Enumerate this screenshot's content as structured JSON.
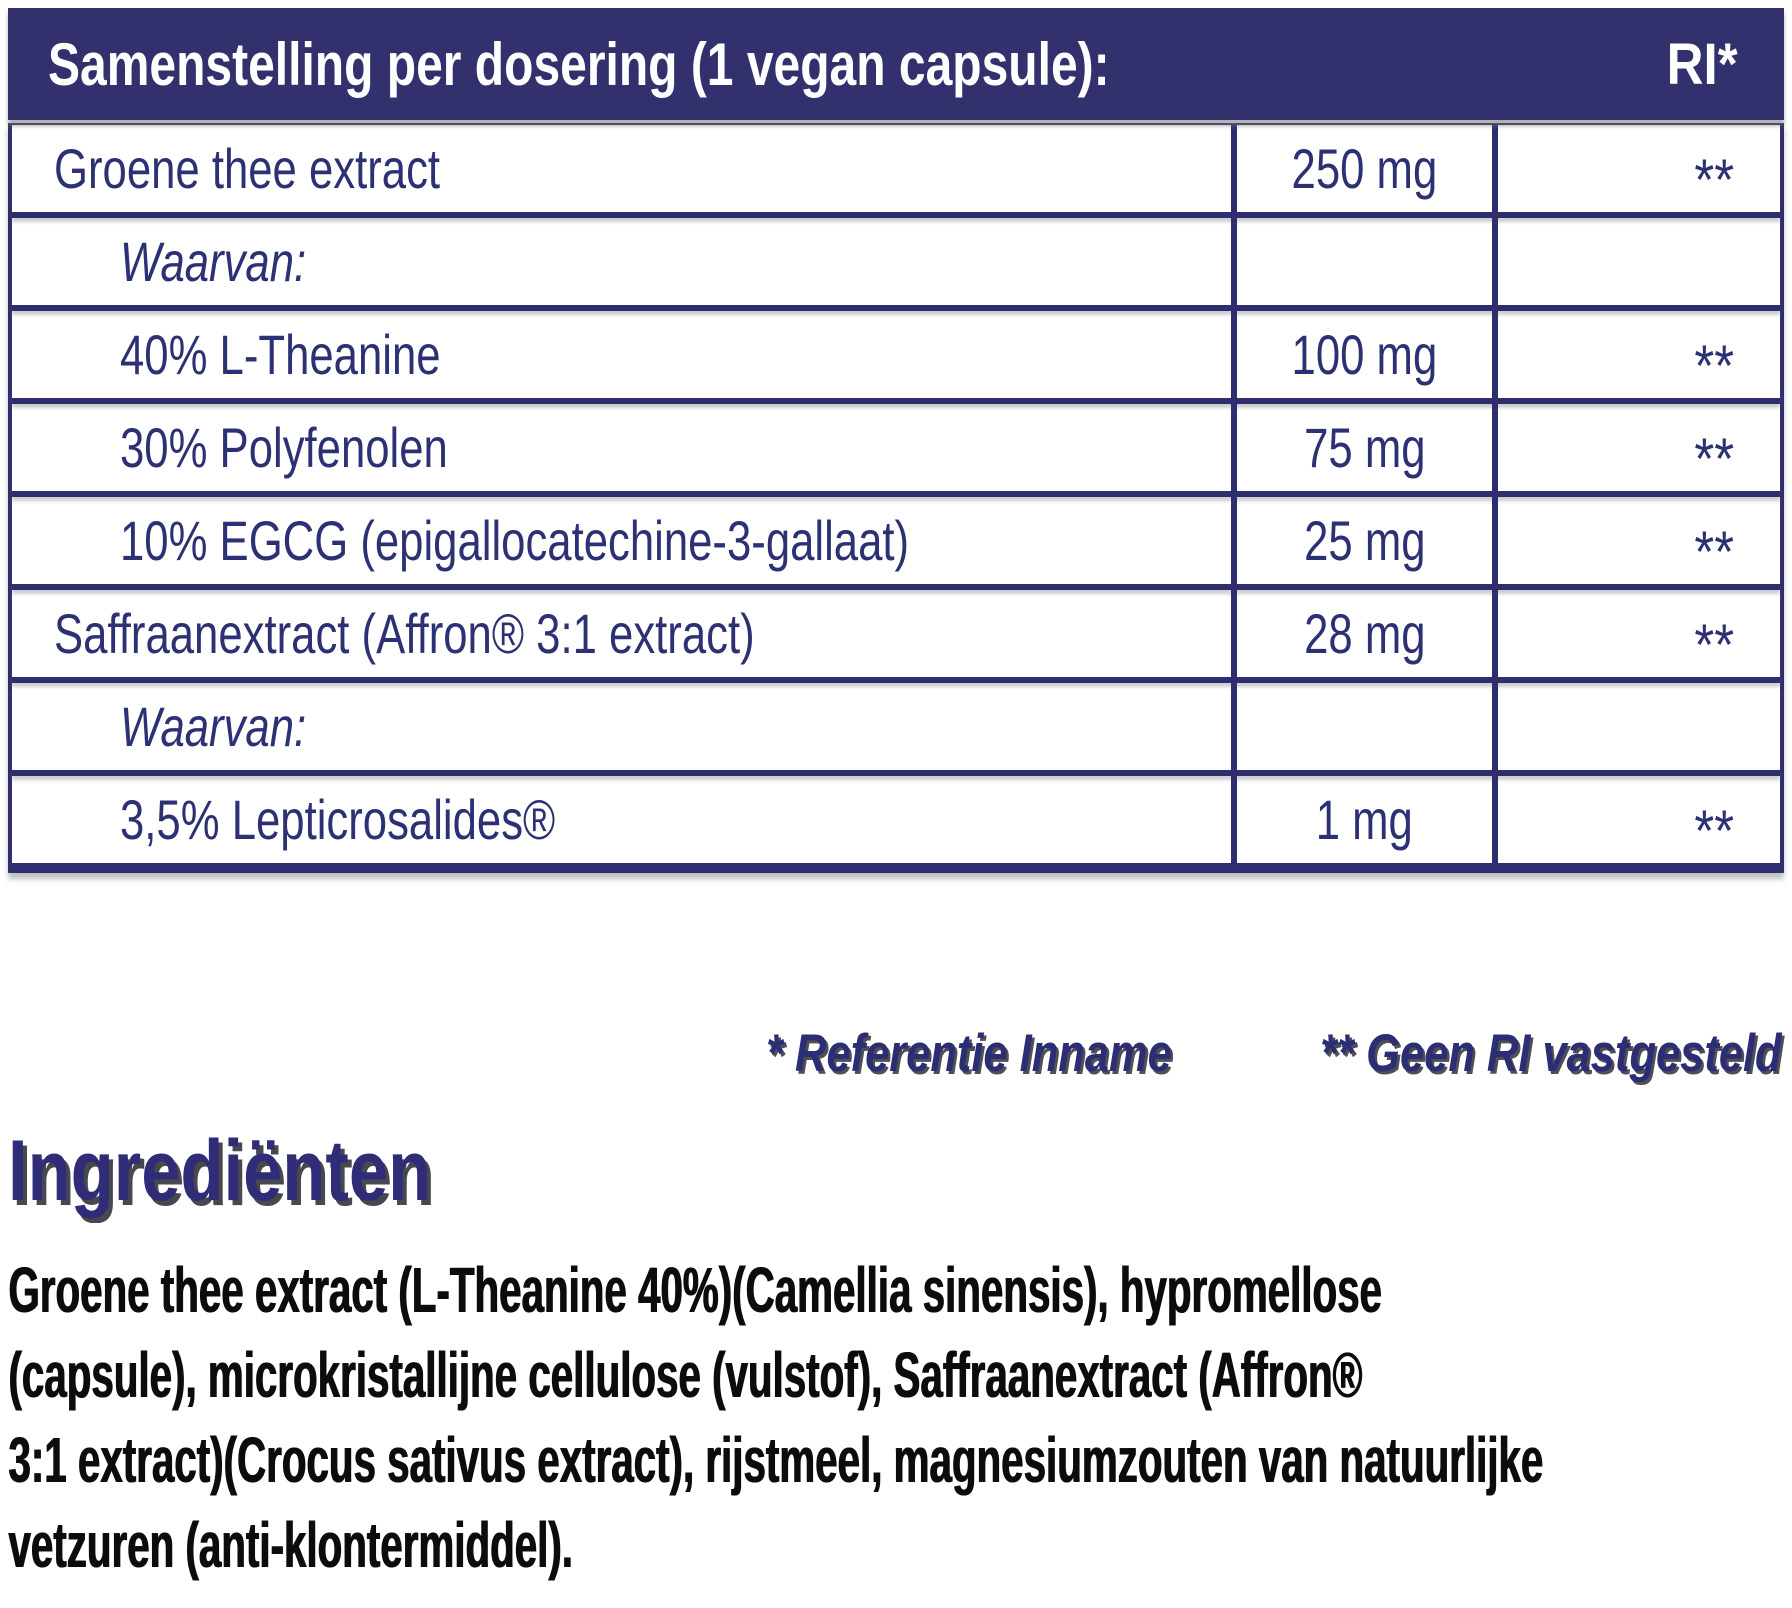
{
  "title_bar": {
    "title": "Samenstelling per dosering (1 vegan capsule):",
    "ri": "RI*"
  },
  "table": {
    "rows": [
      {
        "label": "Groene thee extract",
        "amount": "250 mg",
        "ri": "**",
        "indent": false,
        "italic": false
      },
      {
        "label": "Waarvan:",
        "amount": "",
        "ri": "",
        "indent": true,
        "italic": true
      },
      {
        "label": "40% L-Theanine",
        "amount": "100 mg",
        "ri": "**",
        "indent": true,
        "italic": false
      },
      {
        "label": "30% Polyfenolen",
        "amount": "75 mg",
        "ri": "**",
        "indent": true,
        "italic": false
      },
      {
        "label": "10% EGCG (epigallocatechine-3-gallaat)",
        "amount": "25 mg",
        "ri": "**",
        "indent": true,
        "italic": false
      },
      {
        "label": "Saffraanextract (Affron® 3:1 extract)",
        "amount": "28 mg",
        "ri": "**",
        "indent": false,
        "italic": false
      },
      {
        "label": "Waarvan:",
        "amount": "",
        "ri": "",
        "indent": true,
        "italic": true
      },
      {
        "label": "3,5% Lepticrosalides®",
        "amount": "1 mg",
        "ri": "**",
        "indent": true,
        "italic": false
      }
    ]
  },
  "footnote": {
    "ref_inname": "* Referentie Inname",
    "geen_ri": "** Geen RI vastgesteld"
  },
  "ingredients": {
    "heading": "Ingrediënten",
    "lines": [
      "Groene thee extract (L-Theanine 40%)(Camellia sinensis), hypromellose",
      "(capsule), microkristallijne cellulose (vulstof), Saffraanextract (Affron®",
      "3:1 extract)(Crocus sativus extract), rijstmeel, magnesiumzouten van natuurlijke",
      "vetzuren (anti-klontermiddel)."
    ]
  },
  "colors": {
    "navy": "#32316e",
    "border_navy": "#2e2d6e",
    "text_navy": "#2c3174",
    "ink": "#0c0c0c"
  }
}
